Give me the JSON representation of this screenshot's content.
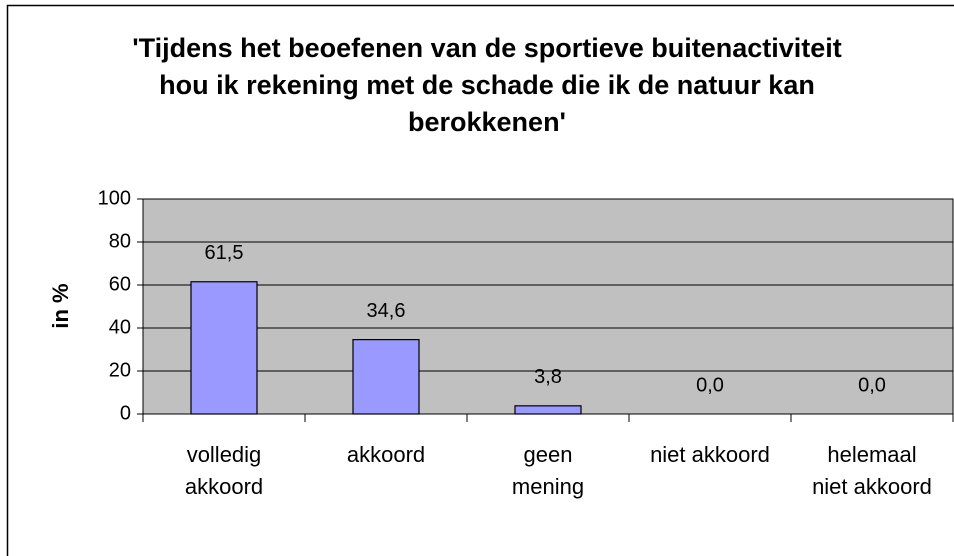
{
  "chart_data": {
    "type": "bar",
    "title": "'Tijdens het beoefenen van de sportieve buitenactiviteit hou ik rekening met de schade die ik de natuur kan berokkenen'",
    "y_label": "in %",
    "categories": [
      "volledig akkoord",
      "akkoord",
      "geen mening",
      "niet akkoord",
      "helemaal niet akkoord"
    ],
    "values": [
      61.5,
      34.6,
      3.8,
      0,
      0
    ],
    "value_labels": [
      "61,5",
      "34,6",
      "3,8",
      "0,0",
      "0,0"
    ],
    "color": "#9999ff",
    "ylim": [
      0,
      100
    ],
    "yticks": [
      0,
      20,
      40,
      60,
      80,
      100
    ],
    "grid": true
  }
}
